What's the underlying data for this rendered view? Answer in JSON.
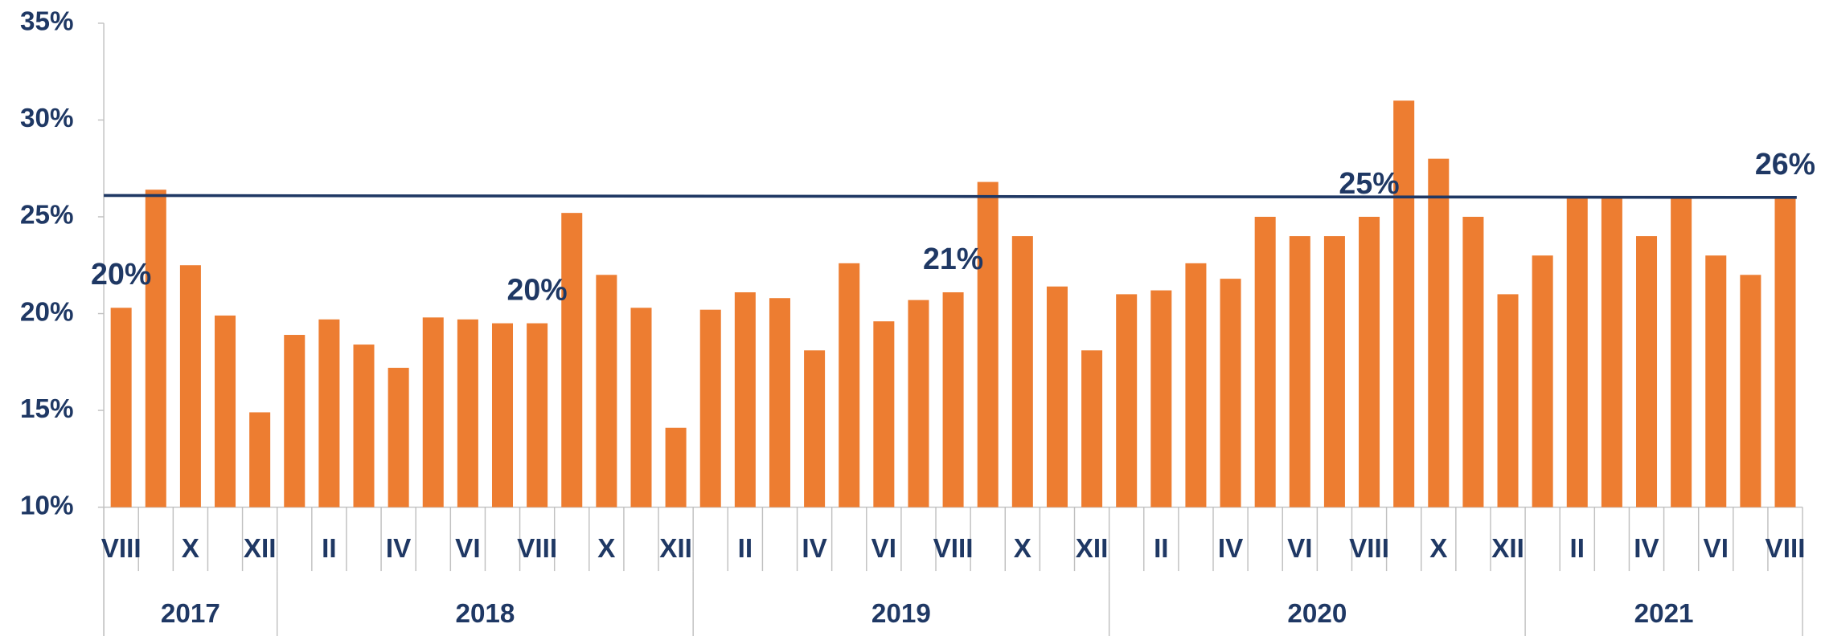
{
  "chart_data": {
    "type": "bar",
    "categories": [
      "VIII",
      null,
      "X",
      null,
      "XII",
      null,
      "II",
      null,
      "IV",
      null,
      "VI",
      null,
      "VIII",
      null,
      "X",
      null,
      "XII",
      null,
      "II",
      null,
      "IV",
      null,
      "VI",
      null,
      "VIII",
      null,
      "X",
      null,
      "XII",
      null,
      "II",
      null,
      "IV",
      null,
      "VI",
      null,
      "VIII",
      null,
      "X",
      null,
      "XII",
      null,
      "II",
      null,
      "IV",
      null,
      "VI",
      null,
      "VIII"
    ],
    "year_groups": [
      {
        "label": "2017",
        "count": 5
      },
      {
        "label": "2018",
        "count": 12
      },
      {
        "label": "2019",
        "count": 12
      },
      {
        "label": "2020",
        "count": 12
      },
      {
        "label": "2021",
        "count": 8
      }
    ],
    "values": [
      20.3,
      26.4,
      22.5,
      19.9,
      14.9,
      18.9,
      19.7,
      18.4,
      17.2,
      19.8,
      19.7,
      19.5,
      19.5,
      25.2,
      22.0,
      20.3,
      14.1,
      20.2,
      21.1,
      20.8,
      18.1,
      22.6,
      19.6,
      20.7,
      21.1,
      26.8,
      24.0,
      21.4,
      18.1,
      21.0,
      21.2,
      22.6,
      21.8,
      25.0,
      24.0,
      24.0,
      25.0,
      31.0,
      28.0,
      25.0,
      21.0,
      23.0,
      26.0,
      26.0,
      24.0,
      26.0,
      23.0,
      22.0,
      26.0
    ],
    "value_labels": [
      "20%",
      null,
      null,
      null,
      null,
      null,
      null,
      null,
      null,
      null,
      null,
      null,
      "20%",
      null,
      null,
      null,
      null,
      null,
      null,
      null,
      null,
      null,
      null,
      null,
      "21%",
      null,
      null,
      null,
      null,
      null,
      null,
      null,
      null,
      null,
      null,
      null,
      "25%",
      null,
      null,
      null,
      null,
      null,
      null,
      null,
      null,
      null,
      null,
      null,
      "26%"
    ],
    "color": "#ed7d31",
    "trend_line": {
      "color": "#1f3864",
      "values": [
        26.1,
        26.0
      ]
    },
    "ylim": [
      10,
      35
    ],
    "yticks": [
      {
        "value": 10,
        "label": "10%"
      },
      {
        "value": 15,
        "label": "15%"
      },
      {
        "value": 20,
        "label": "20%"
      },
      {
        "value": 25,
        "label": "25%"
      },
      {
        "value": 30,
        "label": "30%"
      },
      {
        "value": 35,
        "label": "35%"
      }
    ],
    "grid": false
  }
}
